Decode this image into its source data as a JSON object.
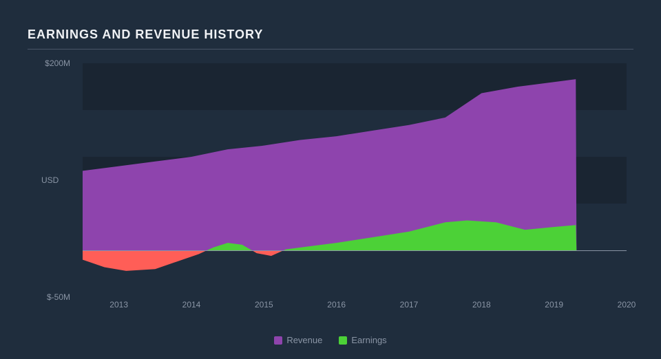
{
  "title": "EARNINGS AND REVENUE HISTORY",
  "chart": {
    "type": "area",
    "background": "#1f2d3d",
    "band_color": "#1a2532",
    "axis_line_color": "#8a95a5",
    "grid_divider_color": "#4a5568",
    "y_axis": {
      "title": "USD",
      "min": -50,
      "max": 200,
      "zero": 0,
      "ticks": [
        {
          "v": 200,
          "label": "$200M"
        },
        {
          "v": -50,
          "label": "$-50M"
        }
      ],
      "bands": [
        {
          "from": 150,
          "to": 200
        },
        {
          "from": 50,
          "to": 100
        }
      ]
    },
    "x_axis": {
      "min": 2012.5,
      "max": 2020,
      "ticks": [
        2013,
        2014,
        2015,
        2016,
        2017,
        2018,
        2019,
        2020
      ]
    },
    "series": [
      {
        "name": "Revenue",
        "color": "#8e44ad",
        "data": [
          {
            "x": 2012.5,
            "y": 85
          },
          {
            "x": 2013.0,
            "y": 90
          },
          {
            "x": 2013.5,
            "y": 95
          },
          {
            "x": 2014.0,
            "y": 100
          },
          {
            "x": 2014.5,
            "y": 108
          },
          {
            "x": 2015.0,
            "y": 112
          },
          {
            "x": 2015.5,
            "y": 118
          },
          {
            "x": 2016.0,
            "y": 122
          },
          {
            "x": 2016.5,
            "y": 128
          },
          {
            "x": 2017.0,
            "y": 134
          },
          {
            "x": 2017.5,
            "y": 142
          },
          {
            "x": 2018.0,
            "y": 168
          },
          {
            "x": 2018.5,
            "y": 175
          },
          {
            "x": 2019.0,
            "y": 180
          },
          {
            "x": 2019.3,
            "y": 183
          },
          {
            "x": 2019.31,
            "y": 0
          }
        ]
      },
      {
        "name": "Earnings",
        "color_pos": "#4cd137",
        "color_neg": "#ff5e57",
        "data": [
          {
            "x": 2012.5,
            "y": -10
          },
          {
            "x": 2012.8,
            "y": -18
          },
          {
            "x": 2013.1,
            "y": -22
          },
          {
            "x": 2013.5,
            "y": -20
          },
          {
            "x": 2013.8,
            "y": -12
          },
          {
            "x": 2014.1,
            "y": -4
          },
          {
            "x": 2014.3,
            "y": 3
          },
          {
            "x": 2014.5,
            "y": 8
          },
          {
            "x": 2014.7,
            "y": 6
          },
          {
            "x": 2014.9,
            "y": -3
          },
          {
            "x": 2015.1,
            "y": -6
          },
          {
            "x": 2015.3,
            "y": 1
          },
          {
            "x": 2015.6,
            "y": 4
          },
          {
            "x": 2016.0,
            "y": 8
          },
          {
            "x": 2016.5,
            "y": 14
          },
          {
            "x": 2017.0,
            "y": 20
          },
          {
            "x": 2017.5,
            "y": 30
          },
          {
            "x": 2017.8,
            "y": 32
          },
          {
            "x": 2018.2,
            "y": 30
          },
          {
            "x": 2018.6,
            "y": 22
          },
          {
            "x": 2019.0,
            "y": 25
          },
          {
            "x": 2019.3,
            "y": 27
          },
          {
            "x": 2019.31,
            "y": 0
          }
        ]
      }
    ],
    "legend": [
      {
        "label": "Revenue",
        "color": "#8e44ad"
      },
      {
        "label": "Earnings",
        "color": "#4cd137"
      }
    ]
  }
}
